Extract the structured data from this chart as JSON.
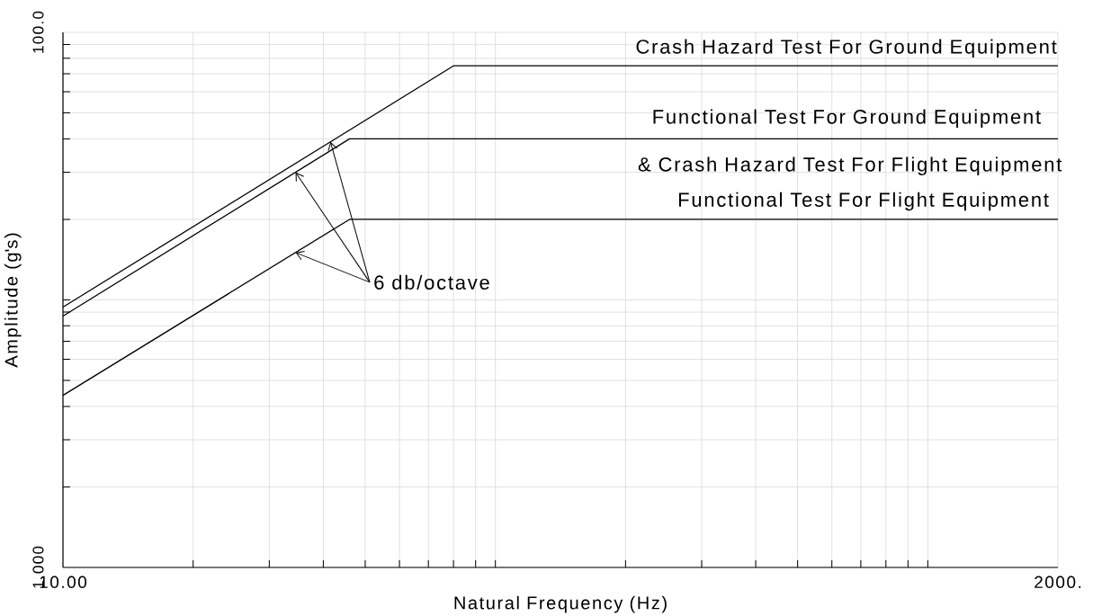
{
  "chart_data": {
    "type": "line",
    "xlabel": "Natural Frequency  (Hz)",
    "ylabel": "Amplitude  (g's)",
    "log": "xy",
    "xlim": [
      10,
      2000
    ],
    "ylim": [
      1,
      100
    ],
    "xticks": [
      {
        "value": 10,
        "label": "10.00"
      },
      {
        "value": 2000,
        "label": "2000."
      }
    ],
    "yticks": [
      {
        "value": 1,
        "label": "1.000"
      },
      {
        "value": 100,
        "label": "100.0"
      }
    ],
    "grid": true,
    "marker": "none",
    "line_style": "solid",
    "series": [
      {
        "color": "#000000",
        "x": [
          10,
          80,
          2000
        ],
        "values": [
          9.4,
          75,
          75
        ]
      },
      {
        "color": "#000000",
        "x": [
          10,
          46,
          2000
        ],
        "values": [
          8.7,
          40,
          40
        ]
      },
      {
        "color": "#000000",
        "x": [
          10,
          46,
          2000
        ],
        "values": [
          4.4,
          20,
          20
        ]
      }
    ],
    "annotations": [
      "Crash Hazard Test For Ground Equipment",
      "Functional Test For Ground Equipment",
      "& Crash Hazard Test For Flight Equipment",
      "Functional Test For Flight Equipment",
      {
        "text": "6 db/octave",
        "x": 34.5,
        "y": 30
      }
    ]
  }
}
